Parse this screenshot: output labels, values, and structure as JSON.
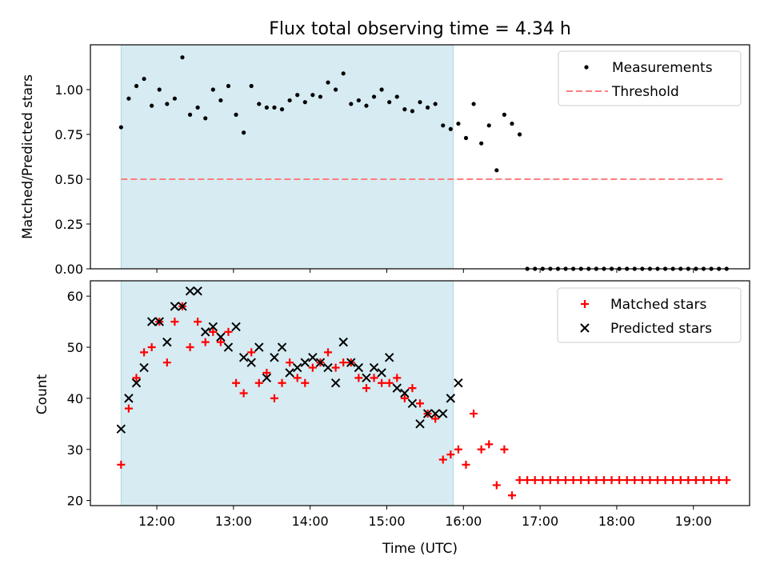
{
  "figure": {
    "title": "Flux total observing time = 4.34 h",
    "xlabel": "Time (UTC)",
    "xticks": [
      "12:00",
      "13:00",
      "14:00",
      "15:00",
      "16:00",
      "17:00",
      "18:00",
      "19:00"
    ],
    "span_color": "#add8e6",
    "observing_span": [
      "11:32",
      "15:52"
    ]
  },
  "chart_data": [
    {
      "type": "scatter",
      "ylabel": "Matched/Predicted stars",
      "ylim": [
        0,
        1.25
      ],
      "yticks": [
        "0.00",
        "0.25",
        "0.50",
        "0.75",
        "1.00"
      ],
      "legend_position": "upper right",
      "series": [
        {
          "name": "Measurements",
          "marker": "dot",
          "color": "#000000",
          "x": [
            "11:32",
            "11:38",
            "11:44",
            "11:50",
            "11:56",
            "12:02",
            "12:08",
            "12:14",
            "12:20",
            "12:26",
            "12:32",
            "12:38",
            "12:44",
            "12:50",
            "12:56",
            "13:02",
            "13:08",
            "13:14",
            "13:20",
            "13:26",
            "13:32",
            "13:38",
            "13:44",
            "13:50",
            "13:56",
            "14:02",
            "14:08",
            "14:14",
            "14:20",
            "14:26",
            "14:32",
            "14:38",
            "14:44",
            "14:50",
            "14:56",
            "15:02",
            "15:08",
            "15:14",
            "15:20",
            "15:26",
            "15:32",
            "15:38",
            "15:44",
            "15:50",
            "15:56",
            "16:02",
            "16:08",
            "16:14",
            "16:20",
            "16:26",
            "16:32",
            "16:38",
            "16:44",
            "16:50",
            "16:56",
            "17:02",
            "17:08",
            "17:14",
            "17:20",
            "17:26",
            "17:32",
            "17:38",
            "17:44",
            "17:50",
            "17:56",
            "18:02",
            "18:08",
            "18:14",
            "18:20",
            "18:26",
            "18:32",
            "18:38",
            "18:44",
            "18:50",
            "18:56",
            "19:02",
            "19:08",
            "19:14",
            "19:20",
            "19:26"
          ],
          "y": [
            0.79,
            0.95,
            1.02,
            1.06,
            0.91,
            1.0,
            0.92,
            0.95,
            1.18,
            0.86,
            0.9,
            0.84,
            1.0,
            0.94,
            1.02,
            0.86,
            0.76,
            1.02,
            0.92,
            0.9,
            0.9,
            0.89,
            0.94,
            0.97,
            0.93,
            0.97,
            0.96,
            1.04,
            1.0,
            1.09,
            0.92,
            0.94,
            0.91,
            0.96,
            1.0,
            0.93,
            0.96,
            0.89,
            0.88,
            0.93,
            0.9,
            0.92,
            0.8,
            0.78,
            0.81,
            0.73,
            0.92,
            0.7,
            0.8,
            0.55,
            0.86,
            0.81,
            0.75,
            0.0,
            0.0,
            0.0,
            0.0,
            0.0,
            0.0,
            0.0,
            0.0,
            0.0,
            0.0,
            0.0,
            0.0,
            0.0,
            0.0,
            0.0,
            0.0,
            0.0,
            0.0,
            0.0,
            0.0,
            0.0,
            0.0,
            0.0,
            0.0,
            0.0,
            0.0,
            0.0
          ]
        },
        {
          "name": "Threshold",
          "type": "line",
          "style": "dashed",
          "color": "#ff7f7f",
          "x": [
            "11:32",
            "19:24"
          ],
          "y": [
            0.5,
            0.5
          ]
        }
      ]
    },
    {
      "type": "scatter",
      "ylabel": "Count",
      "ylim": [
        19,
        63
      ],
      "yticks": [
        "20",
        "30",
        "40",
        "50",
        "60"
      ],
      "legend_position": "upper right",
      "series": [
        {
          "name": "Matched stars",
          "marker": "plus",
          "color": "#ff0000",
          "x": [
            "11:32",
            "11:38",
            "11:44",
            "11:50",
            "11:56",
            "12:02",
            "12:08",
            "12:14",
            "12:20",
            "12:26",
            "12:32",
            "12:38",
            "12:44",
            "12:50",
            "12:56",
            "13:02",
            "13:08",
            "13:14",
            "13:20",
            "13:26",
            "13:32",
            "13:38",
            "13:44",
            "13:50",
            "13:56",
            "14:02",
            "14:08",
            "14:14",
            "14:20",
            "14:26",
            "14:32",
            "14:38",
            "14:44",
            "14:50",
            "14:56",
            "15:02",
            "15:08",
            "15:14",
            "15:20",
            "15:26",
            "15:32",
            "15:38",
            "15:44",
            "15:50",
            "15:56",
            "16:02",
            "16:08",
            "16:14",
            "16:20",
            "16:26",
            "16:32",
            "16:38",
            "16:44",
            "16:50",
            "16:56",
            "17:02",
            "17:08",
            "17:14",
            "17:20",
            "17:26",
            "17:32",
            "17:38",
            "17:44",
            "17:50",
            "17:56",
            "18:02",
            "18:08",
            "18:14",
            "18:20",
            "18:26",
            "18:32",
            "18:38",
            "18:44",
            "18:50",
            "18:56",
            "19:02",
            "19:08",
            "19:14",
            "19:20",
            "19:26"
          ],
          "y": [
            27,
            38,
            44,
            49,
            50,
            55,
            47,
            55,
            58,
            50,
            55,
            51,
            53,
            51,
            53,
            43,
            41,
            49,
            43,
            45,
            40,
            43,
            47,
            44,
            43,
            46,
            47,
            49,
            46,
            47,
            47,
            44,
            42,
            44,
            43,
            43,
            44,
            40,
            42,
            39,
            37,
            36,
            28,
            29,
            30,
            27,
            37,
            30,
            31,
            23,
            30,
            21,
            24,
            24,
            24,
            24,
            24,
            24,
            24,
            24,
            24,
            24,
            24,
            24,
            24,
            24,
            24,
            24,
            24,
            24,
            24,
            24,
            24,
            24,
            24,
            24,
            24,
            24,
            24,
            24
          ]
        },
        {
          "name": "Predicted stars",
          "marker": "x",
          "color": "#000000",
          "x": [
            "11:32",
            "11:38",
            "11:44",
            "11:50",
            "11:56",
            "12:02",
            "12:08",
            "12:14",
            "12:20",
            "12:26",
            "12:32",
            "12:38",
            "12:44",
            "12:50",
            "12:56",
            "13:02",
            "13:08",
            "13:14",
            "13:20",
            "13:26",
            "13:32",
            "13:38",
            "13:44",
            "13:50",
            "13:56",
            "14:02",
            "14:08",
            "14:14",
            "14:20",
            "14:26",
            "14:32",
            "14:38",
            "14:44",
            "14:50",
            "14:56",
            "15:02",
            "15:08",
            "15:14",
            "15:20",
            "15:26",
            "15:32",
            "15:38",
            "15:44",
            "15:50",
            "15:56"
          ],
          "y": [
            34,
            40,
            43,
            46,
            55,
            55,
            51,
            58,
            58,
            61,
            61,
            53,
            54,
            52,
            50,
            54,
            48,
            47,
            50,
            44,
            48,
            50,
            45,
            46,
            47,
            48,
            47,
            46,
            43,
            51,
            47,
            46,
            44,
            46,
            45,
            48,
            42,
            41,
            39,
            35,
            37,
            37,
            37,
            40,
            43
          ]
        }
      ]
    }
  ]
}
